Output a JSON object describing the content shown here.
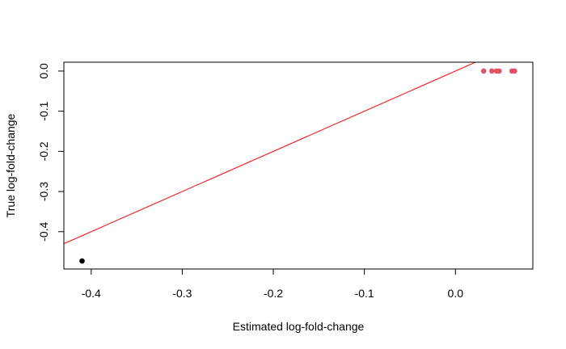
{
  "chart_data": {
    "type": "scatter",
    "title": "",
    "xlabel": "Estimated log-fold-change",
    "ylabel": "True log-fold-change",
    "xlim": [
      -0.43,
      0.085
    ],
    "ylim": [
      -0.493,
      0.022
    ],
    "x_ticks": [
      -0.4,
      -0.3,
      -0.2,
      -0.1,
      0.0
    ],
    "x_tick_labels": [
      "-0.4",
      "-0.3",
      "-0.2",
      "-0.1",
      "0.0"
    ],
    "y_ticks": [
      -0.4,
      -0.3,
      -0.2,
      -0.1,
      0.0
    ],
    "y_tick_labels": [
      "-0.4",
      "-0.3",
      "-0.2",
      "-0.1",
      "0.0"
    ],
    "grid": false,
    "series": [
      {
        "color": "#000000",
        "points": [
          {
            "x": -0.41,
            "y": -0.473
          }
        ]
      },
      {
        "color": "#df536b",
        "points": [
          {
            "x": 0.031,
            "y": 0.0
          },
          {
            "x": 0.04,
            "y": 0.0
          },
          {
            "x": 0.045,
            "y": 0.0
          },
          {
            "x": 0.048,
            "y": 0.0
          },
          {
            "x": 0.062,
            "y": 0.0
          },
          {
            "x": 0.065,
            "y": 0.0
          }
        ]
      }
    ],
    "reference_line": {
      "type": "identity",
      "slope": 1,
      "intercept": 0,
      "color": "#ff0000"
    }
  }
}
